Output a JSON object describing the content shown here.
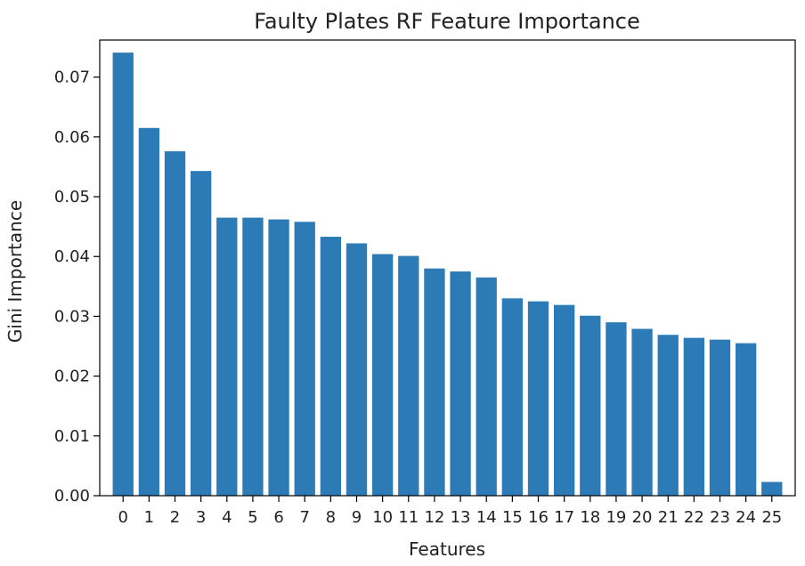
{
  "chart_data": {
    "type": "bar",
    "title": "Faulty Plates RF Feature Importance",
    "xlabel": "Features",
    "ylabel": "Gini Importance",
    "categories": [
      "0",
      "1",
      "2",
      "3",
      "4",
      "5",
      "6",
      "7",
      "8",
      "9",
      "10",
      "11",
      "12",
      "13",
      "14",
      "15",
      "16",
      "17",
      "18",
      "19",
      "20",
      "21",
      "22",
      "23",
      "24",
      "25"
    ],
    "values": [
      0.0741,
      0.0615,
      0.0576,
      0.0543,
      0.0465,
      0.0465,
      0.0462,
      0.0458,
      0.0433,
      0.0422,
      0.0404,
      0.0401,
      0.038,
      0.0375,
      0.0365,
      0.033,
      0.0325,
      0.0319,
      0.0301,
      0.029,
      0.0279,
      0.0269,
      0.0264,
      0.0261,
      0.0255,
      0.0023
    ],
    "yticks": [
      "0.00",
      "0.01",
      "0.02",
      "0.03",
      "0.04",
      "0.05",
      "0.06",
      "0.07"
    ],
    "ylim": [
      0,
      0.0762
    ],
    "grid": false,
    "color": "#2c7bb6"
  }
}
